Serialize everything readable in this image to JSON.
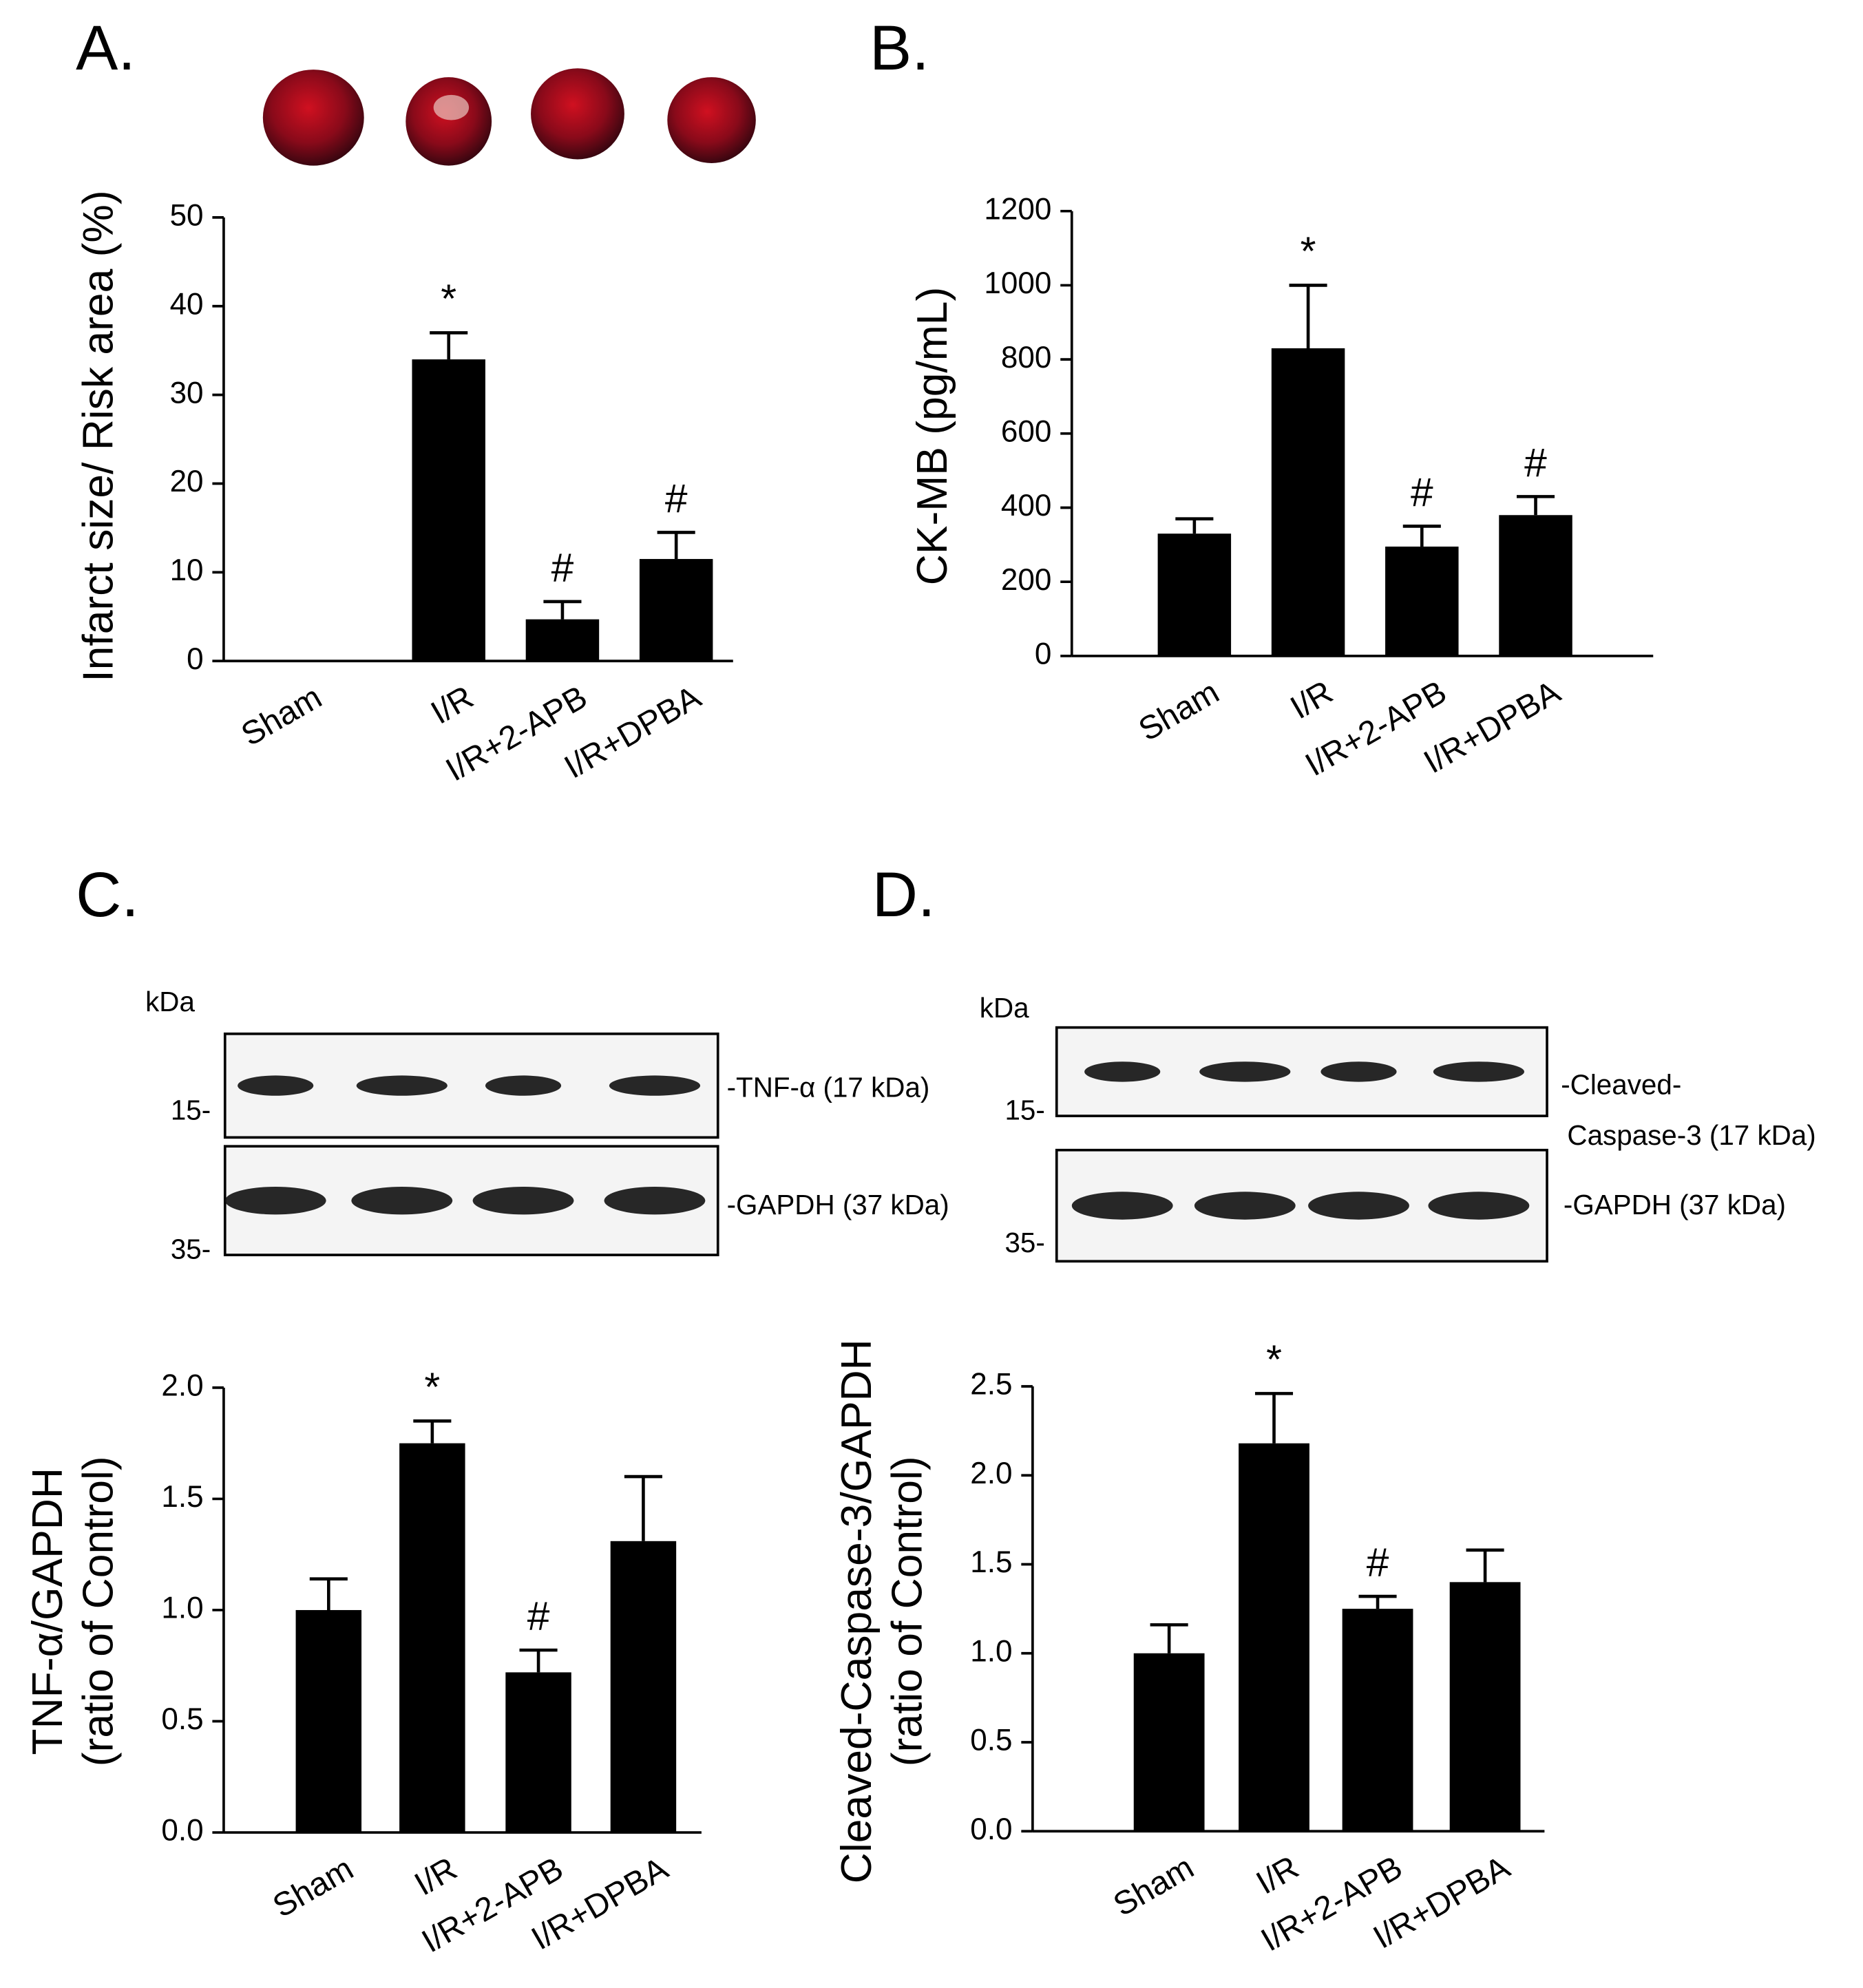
{
  "chart_data": [
    {
      "type": "bar",
      "panel": "A.",
      "ylabel": [
        "Infarct size/ Risk area (%)"
      ],
      "categories": [
        "Sham",
        "I/R",
        "I/R+2-APB",
        "I/R+DPBA"
      ],
      "values": [
        0,
        34,
        4.7,
        11.5
      ],
      "errors": [
        null,
        3,
        2,
        3
      ],
      "annotations": [
        null,
        "*",
        "#",
        "#"
      ],
      "color": "#000000",
      "ylim": [
        0,
        50
      ],
      "yticks": [
        0,
        10,
        20,
        30,
        40,
        50
      ]
    },
    {
      "type": "bar",
      "panel": "B.",
      "ylabel": [
        "CK-MB (pg/mL)"
      ],
      "categories": [
        "Sham",
        "I/R",
        "I/R+2-APB",
        "I/R+DPBA"
      ],
      "values": [
        330,
        830,
        295,
        380
      ],
      "errors": [
        40,
        170,
        55,
        50
      ],
      "annotations": [
        null,
        "*",
        "#",
        "#"
      ],
      "color": "#000000",
      "ylim": [
        0,
        1200
      ],
      "yticks": [
        0,
        200,
        400,
        600,
        800,
        1000,
        1200
      ]
    },
    {
      "type": "bar",
      "panel": "C.",
      "ylabel": [
        "TNF-α/GAPDH",
        "(ratio of Control)"
      ],
      "categories": [
        "Sham",
        "I/R",
        "I/R+2-APB",
        "I/R+DPBA"
      ],
      "values": [
        1.0,
        1.75,
        0.72,
        1.31
      ],
      "errors": [
        0.14,
        0.1,
        0.1,
        0.29
      ],
      "annotations": [
        null,
        "*",
        "#",
        null
      ],
      "color": "#000000",
      "ylim": [
        0,
        2.0
      ],
      "yticks": [
        {
          "value": 0,
          "label": "0.0"
        },
        0.5,
        {
          "value": 1,
          "label": "1.0"
        },
        1.5,
        {
          "value": 2,
          "label": "2.0"
        }
      ],
      "blot": {
        "unit": "kDa",
        "markers": [
          "15-",
          "35-"
        ],
        "bands": [
          [
            "-TNF-α (17 kDa)"
          ],
          [
            "-GAPDH (37 kDa)"
          ]
        ]
      }
    },
    {
      "type": "bar",
      "panel": "D.",
      "ylabel": [
        "Cleaved-Caspase-3/GAPDH",
        "(ratio of Control)"
      ],
      "categories": [
        "Sham",
        "I/R",
        "I/R+2-APB",
        "I/R+DPBA"
      ],
      "values": [
        1.0,
        2.18,
        1.25,
        1.4
      ],
      "errors": [
        0.16,
        0.28,
        0.07,
        0.18
      ],
      "annotations": [
        null,
        "*",
        "#",
        null
      ],
      "color": "#000000",
      "ylim": [
        0,
        2.5
      ],
      "yticks": [
        {
          "value": 0,
          "label": "0.0"
        },
        0.5,
        {
          "value": 1,
          "label": "1.0"
        },
        1.5,
        {
          "value": 2,
          "label": "2.0"
        },
        2.5
      ],
      "blot": {
        "unit": "kDa",
        "markers": [
          "15-",
          "35-"
        ],
        "bands": [
          [
            "-Cleaved-",
            "Caspase-3 (17 kDa)"
          ],
          [
            "-GAPDH (37 kDa)"
          ]
        ]
      }
    }
  ]
}
